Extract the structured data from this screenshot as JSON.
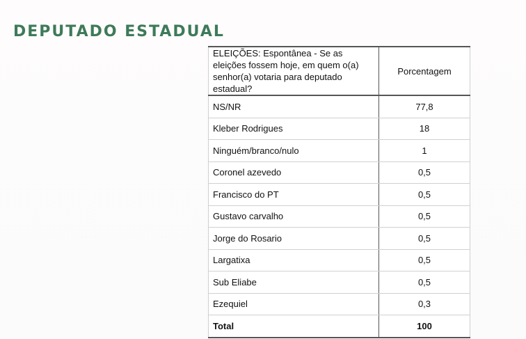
{
  "title": "DEPUTADO ESTADUAL",
  "table": {
    "headers": [
      "ELEIÇÕES: Espontânea - Se as eleições fossem hoje, em quem o(a) senhor(a) votaria para deputado estadual?",
      "Porcentagem"
    ],
    "rows": [
      {
        "name": "NS/NR",
        "value": "77,8"
      },
      {
        "name": "Kleber Rodrigues",
        "value": "18"
      },
      {
        "name": "Ninguém/branco/nulo",
        "value": "1"
      },
      {
        "name": "Coronel azevedo",
        "value": "0,5"
      },
      {
        "name": "Francisco do PT",
        "value": "0,5"
      },
      {
        "name": "Gustavo carvalho",
        "value": "0,5"
      },
      {
        "name": "Jorge do Rosario",
        "value": "0,5"
      },
      {
        "name": "Largatixa",
        "value": "0,5"
      },
      {
        "name": "Sub Eliabe",
        "value": "0,5"
      },
      {
        "name": "Ezequiel",
        "value": "0,3"
      }
    ],
    "total": {
      "name": "Total",
      "value": "100"
    }
  }
}
